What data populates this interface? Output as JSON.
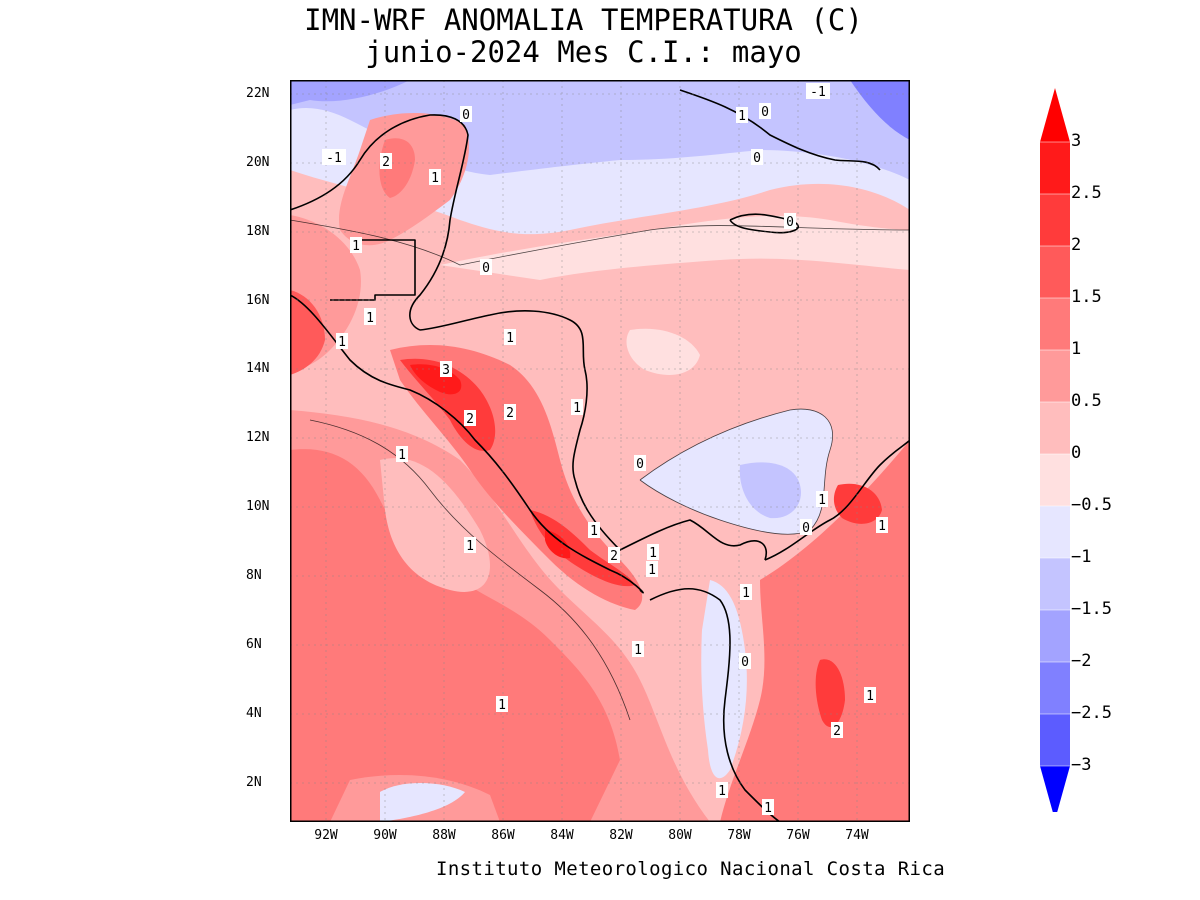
{
  "title": {
    "line1": "IMN-WRF  ANOMALIA TEMPERATURA (C)",
    "line2": "junio-2024 Mes C.I.: mayo"
  },
  "credit": "Instituto Meteorologico Nacional Costa Rica",
  "lat_labels": [
    "22N",
    "20N",
    "18N",
    "16N",
    "14N",
    "12N",
    "10N",
    "8N",
    "6N",
    "4N",
    "2N"
  ],
  "lon_labels": [
    "92W",
    "90W",
    "88W",
    "86W",
    "84W",
    "82W",
    "80W",
    "78W",
    "76W",
    "74W"
  ],
  "colorbar": {
    "ticks": [
      "3",
      "2.5",
      "2",
      "1.5",
      "1",
      "0.5",
      "0",
      "−0.5",
      "−1",
      "−1.5",
      "−2",
      "−2.5",
      "−3"
    ],
    "colors": [
      "#ff1a1a",
      "#ff3b3b",
      "#ff5a5a",
      "#ff7a7a",
      "#ff9a9a",
      "#ffbdbd",
      "#ffe0e0",
      "#e6e6ff",
      "#c4c4ff",
      "#a3a3ff",
      "#8080ff",
      "#5c5cff",
      "#3333ff"
    ],
    "over_color": "#ff0000",
    "under_color": "#0000ff"
  },
  "contour_labels": [
    "0",
    "-1",
    "1",
    "2",
    "1",
    "0",
    "-1",
    "1",
    "0",
    "0",
    "0",
    "1",
    "1",
    "1",
    "1",
    "3",
    "2",
    "2",
    "1",
    "1",
    "0",
    "1",
    "1",
    "2",
    "1",
    "1",
    "0",
    "1",
    "1",
    "1",
    "0",
    "1",
    "1",
    "2",
    "1",
    "1",
    "1"
  ]
}
